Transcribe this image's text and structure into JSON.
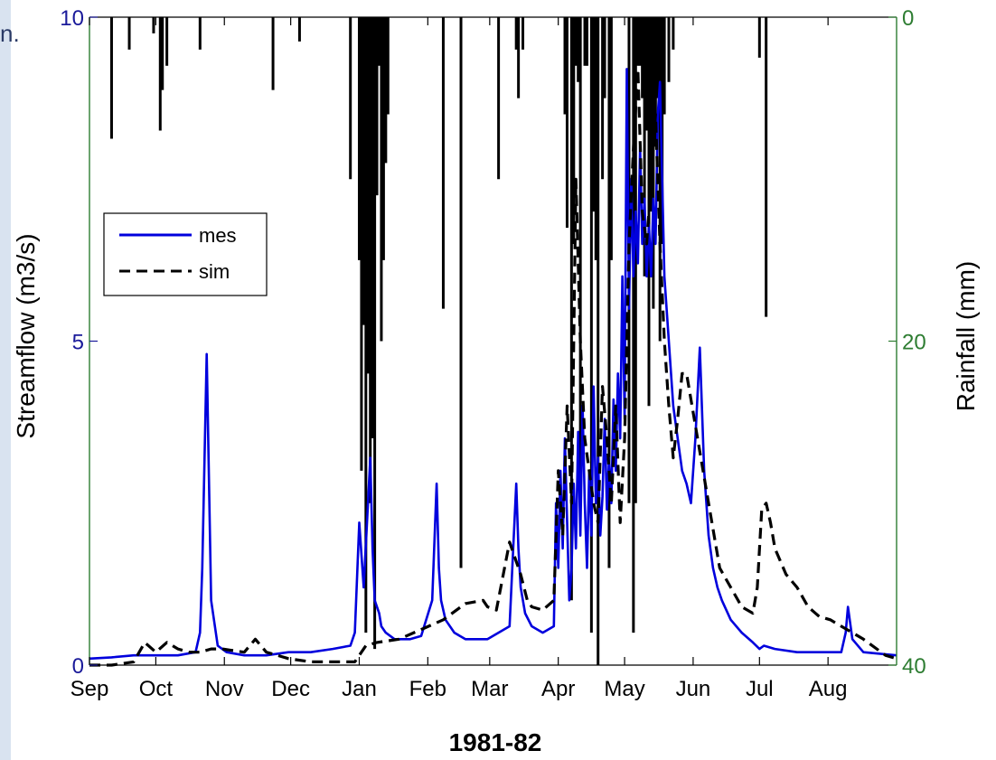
{
  "page": {
    "corner_fragment": "n."
  },
  "chart_data": {
    "type": "line",
    "xlabel": "1981-82",
    "ylabel_left": "Streamflow (m3/s)",
    "ylabel_right": "Rainfall (mm)",
    "ylim_left": [
      0,
      10
    ],
    "ylim_right_inverted": [
      0,
      40
    ],
    "xlim_days": [
      0,
      365
    ],
    "left_ticks": [
      {
        "value": 0,
        "label": "0"
      },
      {
        "value": 5,
        "label": "5"
      },
      {
        "value": 10,
        "label": "10"
      }
    ],
    "right_ticks": [
      {
        "value": 0,
        "label": "0"
      },
      {
        "value": 20,
        "label": "20"
      },
      {
        "value": 40,
        "label": "40"
      }
    ],
    "months": [
      {
        "label": "Sep",
        "day": 0
      },
      {
        "label": "Oct",
        "day": 30
      },
      {
        "label": "Nov",
        "day": 61
      },
      {
        "label": "Dec",
        "day": 91
      },
      {
        "label": "Jan",
        "day": 122
      },
      {
        "label": "Feb",
        "day": 153
      },
      {
        "label": "Mar",
        "day": 181
      },
      {
        "label": "Apr",
        "day": 212
      },
      {
        "label": "May",
        "day": 242
      },
      {
        "label": "Jun",
        "day": 273
      },
      {
        "label": "Jul",
        "day": 303
      },
      {
        "label": "Aug",
        "day": 334
      }
    ],
    "colors": {
      "left_axis": "#1a1a9a",
      "right_axis": "#2e7d32",
      "mes": "#0000dd",
      "sim": "#000000",
      "rain": "#000000"
    },
    "legend": {
      "placement": "upper-left",
      "entries": [
        "mes",
        "sim"
      ]
    },
    "series": [
      {
        "name": "mes",
        "style": "solid",
        "x": [
          0,
          10,
          20,
          30,
          40,
          48,
          50,
          51,
          53,
          55,
          58,
          62,
          70,
          80,
          90,
          100,
          110,
          118,
          120,
          122,
          124,
          127,
          128,
          129,
          131,
          132,
          134,
          136,
          138,
          140,
          145,
          150,
          155,
          157,
          158,
          159,
          161,
          165,
          170,
          180,
          185,
          190,
          193,
          194,
          195,
          197,
          200,
          205,
          210,
          211,
          212,
          213,
          214,
          215,
          216,
          217,
          218,
          219,
          220,
          221,
          222,
          223,
          224,
          225,
          226,
          227,
          228,
          229,
          230,
          231,
          232,
          233,
          234,
          235,
          236,
          237,
          238,
          239,
          240,
          241,
          242,
          243,
          244,
          245,
          246,
          247,
          248,
          249,
          250,
          251,
          252,
          253,
          254,
          255,
          256,
          257,
          258,
          260,
          262,
          264,
          266,
          268,
          270,
          272,
          274,
          276,
          278,
          280,
          282,
          284,
          286,
          290,
          295,
          300,
          303,
          305,
          310,
          320,
          330,
          340,
          342,
          343,
          345,
          350,
          365
        ],
        "values": [
          0.1,
          0.12,
          0.15,
          0.15,
          0.15,
          0.2,
          0.5,
          1.5,
          4.8,
          1.0,
          0.3,
          0.2,
          0.15,
          0.15,
          0.2,
          0.2,
          0.25,
          0.3,
          0.5,
          2.2,
          1.2,
          3.2,
          1.8,
          1.0,
          0.8,
          0.6,
          0.5,
          0.45,
          0.4,
          0.4,
          0.4,
          0.45,
          1.0,
          2.8,
          1.5,
          1.0,
          0.7,
          0.5,
          0.4,
          0.4,
          0.5,
          0.6,
          2.8,
          1.8,
          1.2,
          0.8,
          0.6,
          0.5,
          0.6,
          2.5,
          1.5,
          3.0,
          1.8,
          3.5,
          2.2,
          1.0,
          1.5,
          2.8,
          1.8,
          3.6,
          2.0,
          4.0,
          2.5,
          1.5,
          3.0,
          2.0,
          4.3,
          2.5,
          3.2,
          2.0,
          2.6,
          3.8,
          2.4,
          3.2,
          2.5,
          4.1,
          3.0,
          4.5,
          3.5,
          6.0,
          3.8,
          9.2,
          5.5,
          7.5,
          6.0,
          7.0,
          6.2,
          8.0,
          6.5,
          7.2,
          6.0,
          6.8,
          6.0,
          7.2,
          6.5,
          8.5,
          9.0,
          6.0,
          5.0,
          4.0,
          3.5,
          3.0,
          2.8,
          2.5,
          3.5,
          4.9,
          3.0,
          2.0,
          1.5,
          1.2,
          1.0,
          0.7,
          0.5,
          0.35,
          0.25,
          0.3,
          0.25,
          0.2,
          0.2,
          0.2,
          0.5,
          0.9,
          0.4,
          0.2,
          0.15
        ]
      },
      {
        "name": "sim",
        "style": "dashed",
        "x": [
          0,
          10,
          20,
          25,
          30,
          35,
          40,
          45,
          50,
          55,
          60,
          70,
          75,
          80,
          85,
          90,
          100,
          110,
          120,
          125,
          130,
          140,
          150,
          160,
          170,
          178,
          180,
          184,
          190,
          195,
          198,
          200,
          205,
          210,
          212,
          214,
          216,
          218,
          220,
          222,
          224,
          226,
          228,
          230,
          232,
          234,
          236,
          238,
          240,
          242,
          244,
          246,
          248,
          250,
          252,
          254,
          256,
          258,
          260,
          262,
          264,
          266,
          268,
          270,
          275,
          280,
          285,
          290,
          295,
          300,
          302,
          304,
          306,
          308,
          310,
          315,
          320,
          325,
          330,
          335,
          340,
          345,
          350,
          360,
          365
        ],
        "values": [
          0.0,
          0.0,
          0.05,
          0.35,
          0.2,
          0.35,
          0.25,
          0.2,
          0.2,
          0.25,
          0.25,
          0.2,
          0.4,
          0.2,
          0.15,
          0.1,
          0.05,
          0.05,
          0.05,
          0.3,
          0.35,
          0.4,
          0.55,
          0.7,
          0.95,
          1.0,
          0.9,
          0.85,
          1.9,
          1.4,
          1.0,
          0.9,
          0.85,
          1.0,
          3.0,
          2.0,
          4.0,
          2.5,
          7.5,
          5.0,
          3.5,
          3.0,
          2.5,
          2.2,
          4.3,
          3.5,
          2.5,
          4.0,
          2.2,
          3.5,
          6.5,
          8.0,
          9.2,
          7.0,
          6.5,
          7.5,
          8.5,
          6.5,
          5.0,
          4.0,
          3.2,
          3.8,
          4.5,
          4.5,
          3.5,
          2.5,
          1.5,
          1.2,
          0.9,
          0.8,
          1.2,
          2.4,
          2.5,
          2.2,
          1.8,
          1.4,
          1.2,
          0.9,
          0.75,
          0.7,
          0.6,
          0.5,
          0.4,
          0.15,
          0.1
        ]
      },
      {
        "name": "rainfall",
        "style": "bars-from-top",
        "days": [
          10,
          18,
          29,
          32,
          33,
          35,
          50,
          83,
          95,
          118,
          122,
          123,
          124,
          125,
          126,
          127,
          128,
          129,
          130,
          131,
          132,
          133,
          134,
          135,
          160,
          168,
          185,
          193,
          194,
          196,
          215,
          216,
          218,
          219,
          220,
          221,
          222,
          224,
          225,
          227,
          228,
          229,
          230,
          232,
          233,
          235,
          236,
          244,
          246,
          247,
          248,
          249,
          250,
          251,
          252,
          253,
          254,
          255,
          256,
          257,
          258,
          259,
          260,
          262,
          264,
          303,
          306
        ],
        "mm": [
          7.5,
          2,
          1,
          7,
          4.5,
          3,
          2,
          4.5,
          1.5,
          10,
          15,
          28,
          19,
          38,
          22,
          30,
          26,
          39,
          11,
          3,
          20,
          15,
          9,
          6,
          18,
          34,
          10,
          2,
          5,
          2,
          6,
          13,
          36,
          14,
          3,
          4,
          30,
          3,
          3,
          38,
          12,
          15,
          40,
          10,
          5,
          34,
          15,
          30,
          38,
          30,
          3,
          3,
          5,
          16,
          7,
          24,
          12,
          18,
          8,
          5,
          20,
          14,
          6,
          4,
          2,
          2.5,
          18.5
        ]
      }
    ]
  }
}
